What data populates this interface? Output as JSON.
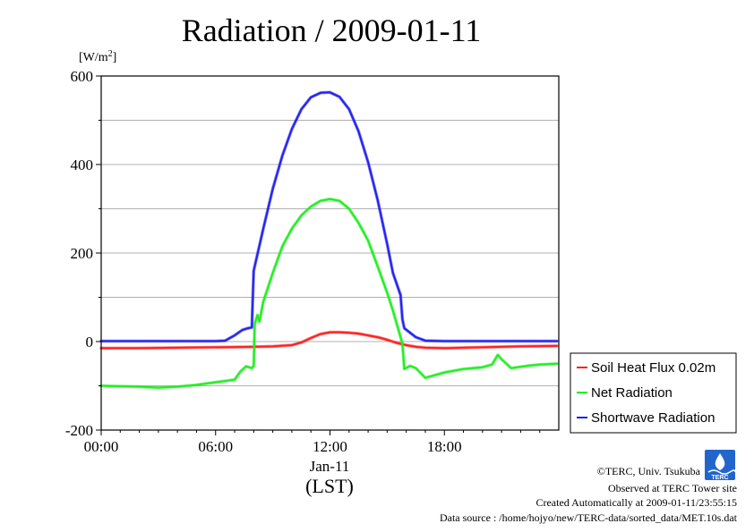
{
  "chart_data": {
    "type": "line",
    "title": "Radiation / 2009-01-11",
    "ylabel": "[W/m",
    "ylabel_sup": "2",
    "ylabel_close": "]",
    "ylim": [
      -200,
      600
    ],
    "yticks": [
      -200,
      0,
      200,
      400,
      600
    ],
    "ytick_labels": [
      "-200",
      "0",
      "200",
      "400",
      "600"
    ],
    "xlim": [
      0,
      24
    ],
    "xticks": [
      0,
      6,
      12,
      18
    ],
    "xtick_labels": [
      "00:00",
      "06:00",
      "12:00",
      "18:00"
    ],
    "x_date_label": "Jan-11",
    "xlabel": "(LST)",
    "grid": true,
    "legend_position": "right",
    "series": [
      {
        "name": "Soil Heat Flux 0.02m",
        "color": "#ff2020",
        "x": [
          0,
          2,
          4,
          6,
          8,
          9,
          10,
          10.5,
          11,
          11.5,
          12,
          12.5,
          13,
          13.5,
          14,
          14.5,
          15,
          15.5,
          16,
          16.5,
          17,
          18,
          20,
          22,
          23.9
        ],
        "y": [
          -15,
          -15,
          -14,
          -13,
          -12,
          -11,
          -8,
          -2,
          8,
          17,
          21,
          21,
          20,
          18,
          14,
          10,
          4,
          -3,
          -8,
          -12,
          -14,
          -15,
          -13,
          -11,
          -10
        ]
      },
      {
        "name": "Net Radiation",
        "color": "#22ee22",
        "x": [
          0,
          1,
          2,
          3,
          4,
          5,
          6,
          6.5,
          7,
          7.3,
          7.6,
          7.9,
          8.0,
          8.05,
          8.2,
          8.3,
          8.5,
          9,
          9.5,
          10,
          10.5,
          11,
          11.5,
          12,
          12.5,
          13,
          13.5,
          14,
          14.5,
          15,
          15.3,
          15.6,
          15.8,
          15.9,
          16.2,
          16.5,
          17,
          17.5,
          18,
          19,
          20,
          20.5,
          20.8,
          21,
          21.5,
          22,
          22.5,
          23,
          23.9
        ],
        "y": [
          -100,
          -101,
          -102,
          -104,
          -102,
          -98,
          -92,
          -89,
          -86,
          -68,
          -56,
          -60,
          -55,
          40,
          60,
          45,
          90,
          155,
          215,
          255,
          285,
          305,
          318,
          322,
          318,
          300,
          268,
          228,
          170,
          110,
          70,
          25,
          -5,
          -62,
          -55,
          -60,
          -82,
          -76,
          -70,
          -62,
          -58,
          -52,
          -30,
          -40,
          -60,
          -57,
          -54,
          -52,
          -50
        ]
      },
      {
        "name": "Shortwave Radiation",
        "color": "#2222ee",
        "x": [
          0,
          2,
          4,
          6,
          6.5,
          7,
          7.4,
          7.7,
          7.9,
          8.0,
          8.5,
          9,
          9.5,
          10,
          10.5,
          11,
          11.5,
          12,
          12.5,
          13,
          13.5,
          14,
          14.5,
          15,
          15.3,
          15.7,
          15.8,
          15.9,
          16.2,
          16.5,
          17,
          18,
          20,
          22,
          23.9
        ],
        "y": [
          1,
          1,
          1,
          1,
          2,
          14,
          26,
          30,
          32,
          160,
          255,
          345,
          420,
          480,
          525,
          552,
          562,
          563,
          553,
          525,
          475,
          405,
          320,
          220,
          155,
          105,
          50,
          30,
          20,
          10,
          2,
          1,
          1,
          1,
          1
        ]
      }
    ]
  },
  "footer": {
    "credit": "©TERC, Univ. Tsukuba",
    "site": "Observed at TERC Tower site",
    "created": "Created Automatically at 2009-01-11/23:55:15",
    "source": "Data source : /home/hojyo/new/TERC-data/sorted_data/MET.10s.dat",
    "logo_text": "TERC"
  }
}
